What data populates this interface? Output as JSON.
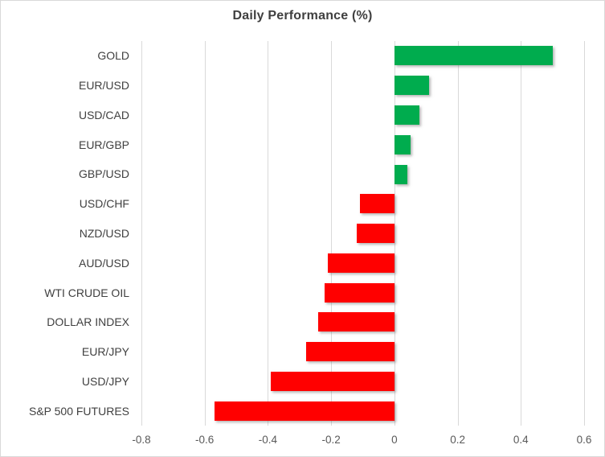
{
  "chart_data": {
    "type": "bar",
    "orientation": "horizontal",
    "title": "Daily Performance (%)",
    "categories": [
      "GOLD",
      "EUR/USD",
      "USD/CAD",
      "EUR/GBP",
      "GBP/USD",
      "USD/CHF",
      "NZD/USD",
      "AUD/USD",
      "WTI CRUDE OIL",
      "DOLLAR INDEX",
      "EUR/JPY",
      "USD/JPY",
      "S&P 500 FUTURES"
    ],
    "values": [
      0.5,
      0.11,
      0.08,
      0.05,
      0.04,
      -0.11,
      -0.12,
      -0.21,
      -0.22,
      -0.24,
      -0.28,
      -0.39,
      -0.57
    ],
    "xlabel": "",
    "ylabel": "",
    "xlim": [
      -0.8,
      0.6
    ],
    "xticks": {
      "values": [
        -0.8,
        -0.6,
        -0.4,
        -0.2,
        0,
        0.2,
        0.4,
        0.6
      ],
      "labels": [
        "-0.8",
        "-0.6",
        "-0.4",
        "-0.2",
        "0",
        "0.2",
        "0.4",
        "0.6"
      ]
    },
    "grid": true,
    "legend": false,
    "unit": "%",
    "colors": {
      "positive": "#00AC4E",
      "negative": "#FF0000"
    }
  },
  "style": {
    "background": "#FFFFFF",
    "border_color": "#D9D9D9",
    "gridline_color": "#D9D9D9",
    "title_color": "#3F3F3F",
    "category_label_color": "#404040",
    "tick_label_color": "#595959"
  }
}
